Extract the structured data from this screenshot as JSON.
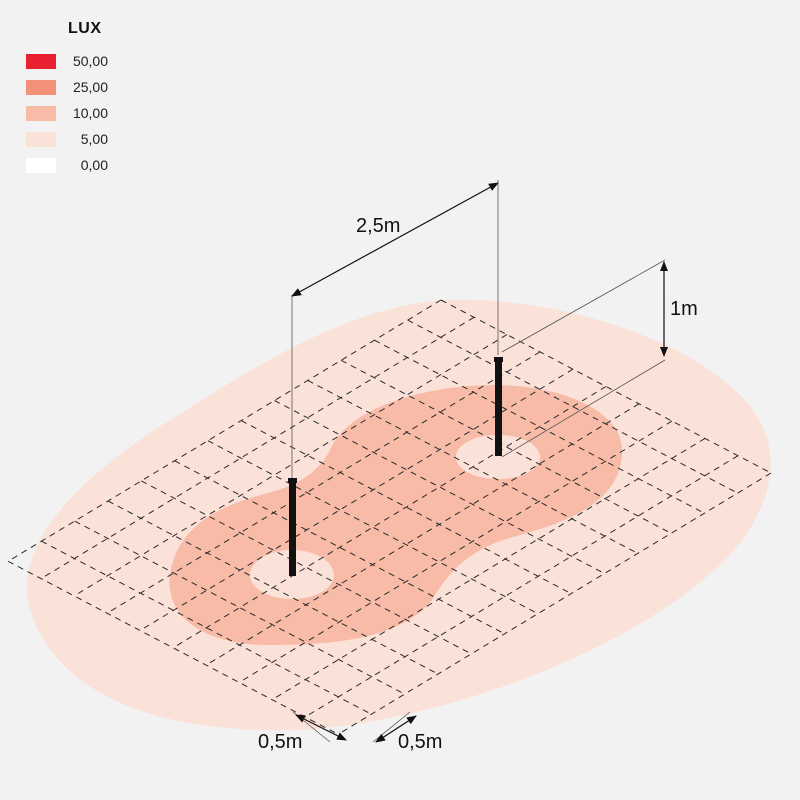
{
  "legend": {
    "title": "LUX",
    "items": [
      {
        "value": "50,00",
        "color": "#e8202f"
      },
      {
        "value": "25,00",
        "color": "#f2907a"
      },
      {
        "value": "10,00",
        "color": "#f7bba8"
      },
      {
        "value": "5,00",
        "color": "#fbe2d9"
      },
      {
        "value": "0,00",
        "color": "#ffffff"
      }
    ]
  },
  "dimensions": {
    "pole_spacing": "2,5m",
    "pole_height": "1m",
    "grid_step_left": "0,5m",
    "grid_step_right": "0,5m"
  },
  "colors": {
    "background": "#f2f2f2",
    "zone_5": "#fbe2d9",
    "zone_10": "#f7bba8",
    "pole": "#111111"
  }
}
